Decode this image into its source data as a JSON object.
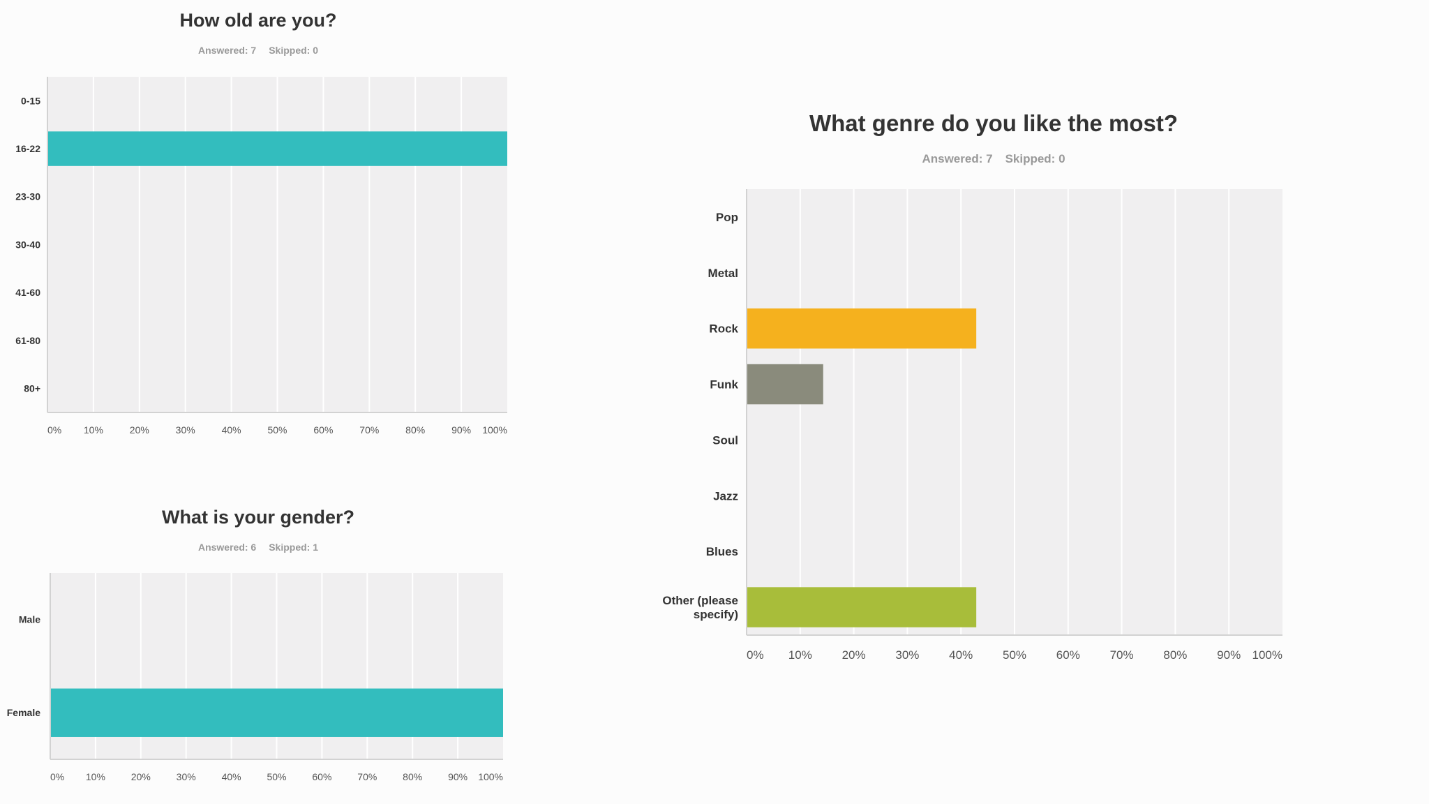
{
  "colors": {
    "plot_bg": "#f0eff0",
    "grid": "#ffffff",
    "axis": "#d2d2d2",
    "teal": "#33bdbe",
    "orange": "#f5b11e",
    "gray": "#8a8b7c",
    "green": "#a8bd3a"
  },
  "chart_data": [
    {
      "id": "age",
      "type": "bar",
      "orientation": "horizontal",
      "title": "How old are you?",
      "answered": "Answered: 7",
      "skipped": "Skipped: 0",
      "categories": [
        "0-15",
        "16-22",
        "23-30",
        "30-40",
        "41-60",
        "61-80",
        "80+"
      ],
      "values": [
        0,
        100,
        0,
        0,
        0,
        0,
        0
      ],
      "bar_colors": [
        "#33bdbe",
        "#33bdbe",
        "#33bdbe",
        "#33bdbe",
        "#33bdbe",
        "#33bdbe",
        "#33bdbe"
      ],
      "xlim": [
        0,
        100
      ],
      "x_ticks": [
        "0%",
        "10%",
        "20%",
        "30%",
        "40%",
        "50%",
        "60%",
        "70%",
        "80%",
        "90%",
        "100%"
      ],
      "grid": true
    },
    {
      "id": "gender",
      "type": "bar",
      "orientation": "horizontal",
      "title": "What is your gender?",
      "answered": "Answered: 6",
      "skipped": "Skipped: 1",
      "categories": [
        "Male",
        "Female"
      ],
      "values": [
        0,
        100
      ],
      "bar_colors": [
        "#33bdbe",
        "#33bdbe"
      ],
      "xlim": [
        0,
        100
      ],
      "x_ticks": [
        "0%",
        "10%",
        "20%",
        "30%",
        "40%",
        "50%",
        "60%",
        "70%",
        "80%",
        "90%",
        "100%"
      ],
      "grid": true
    },
    {
      "id": "genre",
      "type": "bar",
      "orientation": "horizontal",
      "title": "What genre do you like the most?",
      "answered": "Answered: 7",
      "skipped": "Skipped: 0",
      "categories": [
        "Pop",
        "Metal",
        "Rock",
        "Funk",
        "Soul",
        "Jazz",
        "Blues",
        "Other (please specify)"
      ],
      "category_lines": [
        [
          "Pop"
        ],
        [
          "Metal"
        ],
        [
          "Rock"
        ],
        [
          "Funk"
        ],
        [
          "Soul"
        ],
        [
          "Jazz"
        ],
        [
          "Blues"
        ],
        [
          "Other (please",
          "specify)"
        ]
      ],
      "values": [
        0,
        0,
        42.86,
        14.29,
        0,
        0,
        0,
        42.86
      ],
      "bar_colors": [
        "#33bdbe",
        "#33bdbe",
        "#f5b11e",
        "#8a8b7c",
        "#33bdbe",
        "#33bdbe",
        "#33bdbe",
        "#a8bd3a"
      ],
      "xlim": [
        0,
        100
      ],
      "x_ticks": [
        "0%",
        "10%",
        "20%",
        "30%",
        "40%",
        "50%",
        "60%",
        "70%",
        "80%",
        "90%",
        "100%"
      ],
      "grid": true
    }
  ]
}
